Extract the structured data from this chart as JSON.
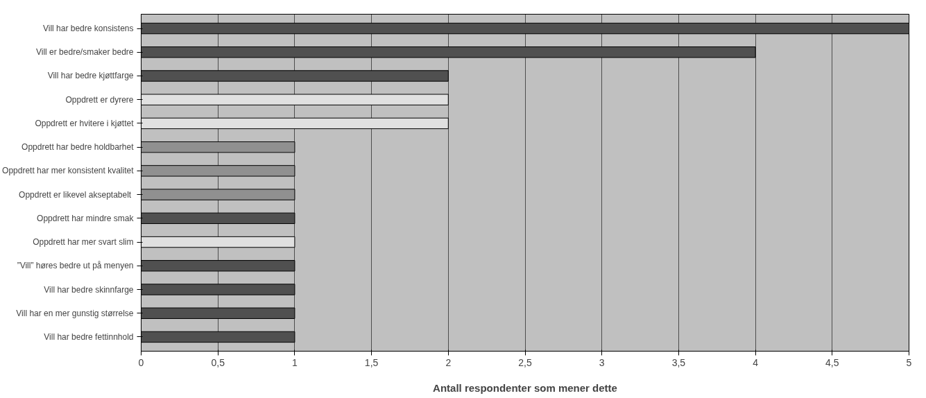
{
  "chart_data": {
    "type": "bar",
    "orientation": "horizontal",
    "xlabel": "Antall respondenter som mener dette",
    "categories": [
      "Vill har bedre konsistens",
      "Vill er bedre/smaker bedre",
      "Vill har bedre kjøttfarge",
      "Oppdrett er dyrere",
      "Oppdrett er hvitere i kjøttet",
      "Oppdrett har bedre holdbarhet",
      "Oppdrett har mer konsistent kvalitet",
      "Oppdrett er likevel  akseptabelt",
      "Oppdrett har mindre smak",
      "Oppdrett har mer svart slim",
      "”Vill” høres bedre ut på menyen",
      "Vill har bedre skinnfarge",
      "Vill har en mer gunstig størrelse",
      "Vill har bedre fettinnhold"
    ],
    "values": [
      5,
      4,
      2,
      2,
      2,
      1,
      1,
      1,
      1,
      1,
      1,
      1,
      1,
      1
    ],
    "colors": [
      "#505050",
      "#505050",
      "#505050",
      "#e0e0e0",
      "#e0e0e0",
      "#909090",
      "#909090",
      "#909090",
      "#505050",
      "#e0e0e0",
      "#505050",
      "#505050",
      "#505050",
      "#505050"
    ],
    "xlim": [
      0,
      5
    ],
    "xticks": [
      0,
      {
        "value": 0.5,
        "label": "0,5"
      },
      1,
      {
        "value": 1.5,
        "label": "1,5"
      },
      2,
      {
        "value": 2.5,
        "label": "2,5"
      },
      3,
      {
        "value": 3.5,
        "label": "3,5"
      },
      4,
      {
        "value": 4.5,
        "label": "4,5"
      },
      5
    ],
    "grid": "x"
  }
}
